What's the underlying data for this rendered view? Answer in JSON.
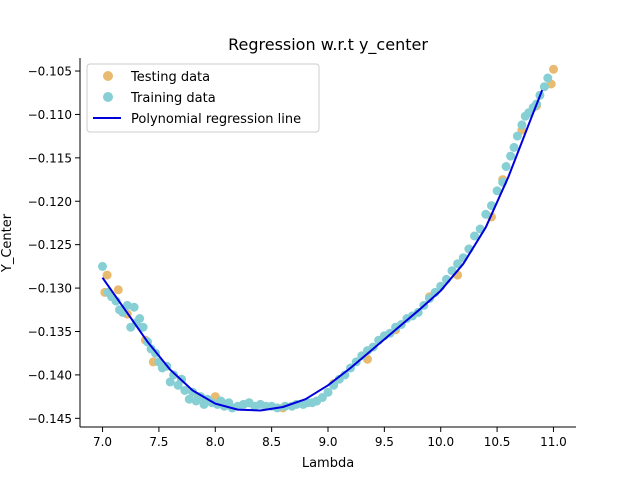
{
  "chart_data": {
    "type": "scatter",
    "title": "Regression w.r.t y_center",
    "xlabel": "Lambda",
    "ylabel": "Y_Center",
    "xlim": [
      6.8,
      11.2
    ],
    "ylim": [
      -0.146,
      -0.1035
    ],
    "xticks": [
      7.0,
      7.5,
      8.0,
      8.5,
      9.0,
      9.5,
      10.0,
      10.5,
      11.0
    ],
    "xtick_labels": [
      "7.0",
      "7.5",
      "8.0",
      "8.5",
      "9.0",
      "9.5",
      "10.0",
      "10.5",
      "11.0"
    ],
    "yticks": [
      -0.105,
      -0.11,
      -0.115,
      -0.12,
      -0.125,
      -0.13,
      -0.135,
      -0.14,
      -0.145
    ],
    "ytick_labels": [
      "−0.105",
      "−0.110",
      "−0.115",
      "−0.120",
      "−0.125",
      "−0.130",
      "−0.135",
      "−0.140",
      "−0.145"
    ],
    "legend_position": "top-left",
    "colors": {
      "testing": "#e8bb70",
      "training": "#86cfd4",
      "line": "#0000dd"
    },
    "series": [
      {
        "name": "Testing data",
        "kind": "scatter",
        "x": [
          7.02,
          7.04,
          7.14,
          7.22,
          7.38,
          7.45,
          7.7,
          7.85,
          8.0,
          8.1,
          8.3,
          8.6,
          8.9,
          9.05,
          9.35,
          9.6,
          9.9,
          10.15,
          10.25,
          10.45,
          10.55,
          10.72,
          10.85,
          11.0,
          10.98
        ],
        "y": [
          -0.1305,
          -0.1285,
          -0.1302,
          -0.133,
          -0.136,
          -0.1385,
          -0.1405,
          -0.1425,
          -0.1425,
          -0.1435,
          -0.1432,
          -0.1438,
          -0.143,
          -0.141,
          -0.1382,
          -0.1348,
          -0.131,
          -0.1285,
          -0.1255,
          -0.1218,
          -0.1175,
          -0.1118,
          -0.109,
          -0.1048,
          -0.1065
        ]
      },
      {
        "name": "Training data",
        "kind": "scatter",
        "x": [
          7.0,
          7.05,
          7.08,
          7.12,
          7.15,
          7.18,
          7.22,
          7.25,
          7.28,
          7.3,
          7.33,
          7.36,
          7.4,
          7.43,
          7.47,
          7.5,
          7.53,
          7.57,
          7.6,
          7.63,
          7.67,
          7.7,
          7.73,
          7.77,
          7.8,
          7.83,
          7.87,
          7.9,
          7.93,
          7.97,
          8.02,
          8.05,
          8.08,
          8.12,
          8.15,
          8.2,
          8.25,
          8.3,
          8.35,
          8.4,
          8.45,
          8.5,
          8.55,
          8.62,
          8.68,
          8.72,
          8.78,
          8.82,
          8.86,
          8.9,
          8.95,
          9.0,
          9.05,
          9.1,
          9.15,
          9.2,
          9.25,
          9.3,
          9.35,
          9.4,
          9.45,
          9.5,
          9.55,
          9.6,
          9.65,
          9.7,
          9.75,
          9.8,
          9.85,
          9.9,
          9.95,
          10.0,
          10.05,
          10.1,
          10.15,
          10.2,
          10.25,
          10.3,
          10.35,
          10.4,
          10.45,
          10.5,
          10.55,
          10.58,
          10.62,
          10.65,
          10.68,
          10.72,
          10.75,
          10.78,
          10.82,
          10.85,
          10.88,
          10.92,
          10.95
        ],
        "y": [
          -0.1275,
          -0.1305,
          -0.131,
          -0.1315,
          -0.1325,
          -0.1328,
          -0.132,
          -0.1345,
          -0.1322,
          -0.134,
          -0.1335,
          -0.1345,
          -0.1362,
          -0.137,
          -0.1375,
          -0.1385,
          -0.1392,
          -0.139,
          -0.1408,
          -0.14,
          -0.1412,
          -0.1405,
          -0.1418,
          -0.1428,
          -0.142,
          -0.143,
          -0.1425,
          -0.1434,
          -0.1428,
          -0.1432,
          -0.1434,
          -0.143,
          -0.1436,
          -0.1432,
          -0.1438,
          -0.1436,
          -0.1434,
          -0.1432,
          -0.1436,
          -0.1434,
          -0.1436,
          -0.1436,
          -0.1438,
          -0.1436,
          -0.1436,
          -0.1434,
          -0.1434,
          -0.1432,
          -0.1432,
          -0.143,
          -0.1426,
          -0.142,
          -0.1412,
          -0.1405,
          -0.14,
          -0.1392,
          -0.1385,
          -0.1378,
          -0.1372,
          -0.1368,
          -0.136,
          -0.1355,
          -0.1352,
          -0.1345,
          -0.1342,
          -0.1335,
          -0.1332,
          -0.1328,
          -0.132,
          -0.1312,
          -0.1305,
          -0.1298,
          -0.129,
          -0.128,
          -0.1272,
          -0.1265,
          -0.1255,
          -0.124,
          -0.1232,
          -0.1215,
          -0.1205,
          -0.1188,
          -0.1178,
          -0.116,
          -0.1148,
          -0.1138,
          -0.1125,
          -0.1112,
          -0.1102,
          -0.1098,
          -0.1092,
          -0.1088,
          -0.1078,
          -0.1068,
          -0.1058
        ]
      },
      {
        "name": "Polynomial regression line",
        "kind": "line",
        "x": [
          7.0,
          7.2,
          7.4,
          7.6,
          7.8,
          8.0,
          8.2,
          8.4,
          8.6,
          8.8,
          9.0,
          9.2,
          9.4,
          9.6,
          9.8,
          10.0,
          10.2,
          10.4,
          10.6,
          10.8,
          10.9
        ],
        "y": [
          -0.1288,
          -0.1325,
          -0.1362,
          -0.1394,
          -0.1418,
          -0.1433,
          -0.144,
          -0.1441,
          -0.1437,
          -0.1428,
          -0.1412,
          -0.1392,
          -0.137,
          -0.1348,
          -0.1326,
          -0.1303,
          -0.1272,
          -0.123,
          -0.1172,
          -0.1105,
          -0.1072
        ]
      }
    ]
  }
}
